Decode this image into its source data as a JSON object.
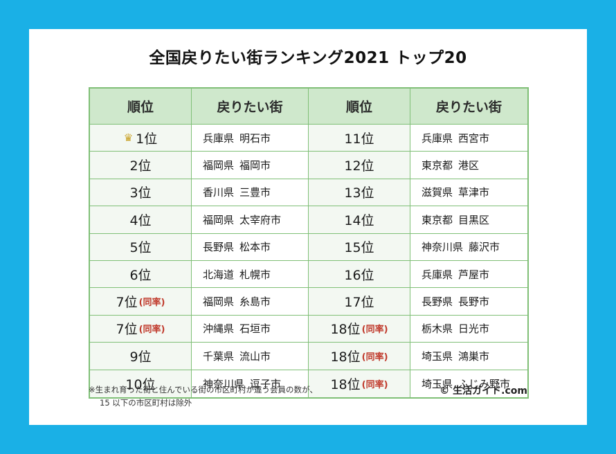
{
  "title": "全国戻りたい街ランキング2021 トップ20",
  "headers": {
    "rank": "順位",
    "city": "戻りたい街"
  },
  "tie_label": "(同率)",
  "left": [
    {
      "rank": "1位",
      "tie": false,
      "crown": true,
      "pref": "兵庫県",
      "city": "明石市"
    },
    {
      "rank": "2位",
      "tie": false,
      "pref": "福岡県",
      "city": "福岡市"
    },
    {
      "rank": "3位",
      "tie": false,
      "pref": "香川県",
      "city": "三豊市"
    },
    {
      "rank": "4位",
      "tie": false,
      "pref": "福岡県",
      "city": "太宰府市"
    },
    {
      "rank": "5位",
      "tie": false,
      "pref": "長野県",
      "city": "松本市"
    },
    {
      "rank": "6位",
      "tie": false,
      "pref": "北海道",
      "city": "札幌市"
    },
    {
      "rank": "7位",
      "tie": true,
      "pref": "福岡県",
      "city": "糸島市"
    },
    {
      "rank": "7位",
      "tie": true,
      "pref": "沖縄県",
      "city": "石垣市"
    },
    {
      "rank": "9位",
      "tie": false,
      "pref": "千葉県",
      "city": "流山市"
    },
    {
      "rank": "10位",
      "tie": false,
      "pref": "神奈川県",
      "city": "逗子市"
    }
  ],
  "right": [
    {
      "rank": "11位",
      "tie": false,
      "pref": "兵庫県",
      "city": "西宮市"
    },
    {
      "rank": "12位",
      "tie": false,
      "pref": "東京都",
      "city": "港区"
    },
    {
      "rank": "13位",
      "tie": false,
      "pref": "滋賀県",
      "city": "草津市"
    },
    {
      "rank": "14位",
      "tie": false,
      "pref": "東京都",
      "city": "目黒区"
    },
    {
      "rank": "15位",
      "tie": false,
      "pref": "神奈川県",
      "city": "藤沢市"
    },
    {
      "rank": "16位",
      "tie": false,
      "pref": "兵庫県",
      "city": "芦屋市"
    },
    {
      "rank": "17位",
      "tie": false,
      "pref": "長野県",
      "city": "長野市"
    },
    {
      "rank": "18位",
      "tie": true,
      "pref": "栃木県",
      "city": "日光市"
    },
    {
      "rank": "18位",
      "tie": true,
      "pref": "埼玉県",
      "city": "鴻巣市"
    },
    {
      "rank": "18位",
      "tie": true,
      "pref": "埼玉県",
      "city": "ふじみ野市"
    }
  ],
  "note_line1": "※生まれ育った街と住んでいる街の市区町村が違う会員の数が、",
  "note_line2": "15 以下の市区町村は除外",
  "copyright": "© 生活ガイド.com",
  "colors": {
    "background": "#1ab0e6",
    "border": "#7fbf76",
    "header_bg": "#cfe8cc",
    "tie": "#c0392b",
    "crown": "#c9a227"
  },
  "icons": {
    "crown": "crown-icon"
  }
}
